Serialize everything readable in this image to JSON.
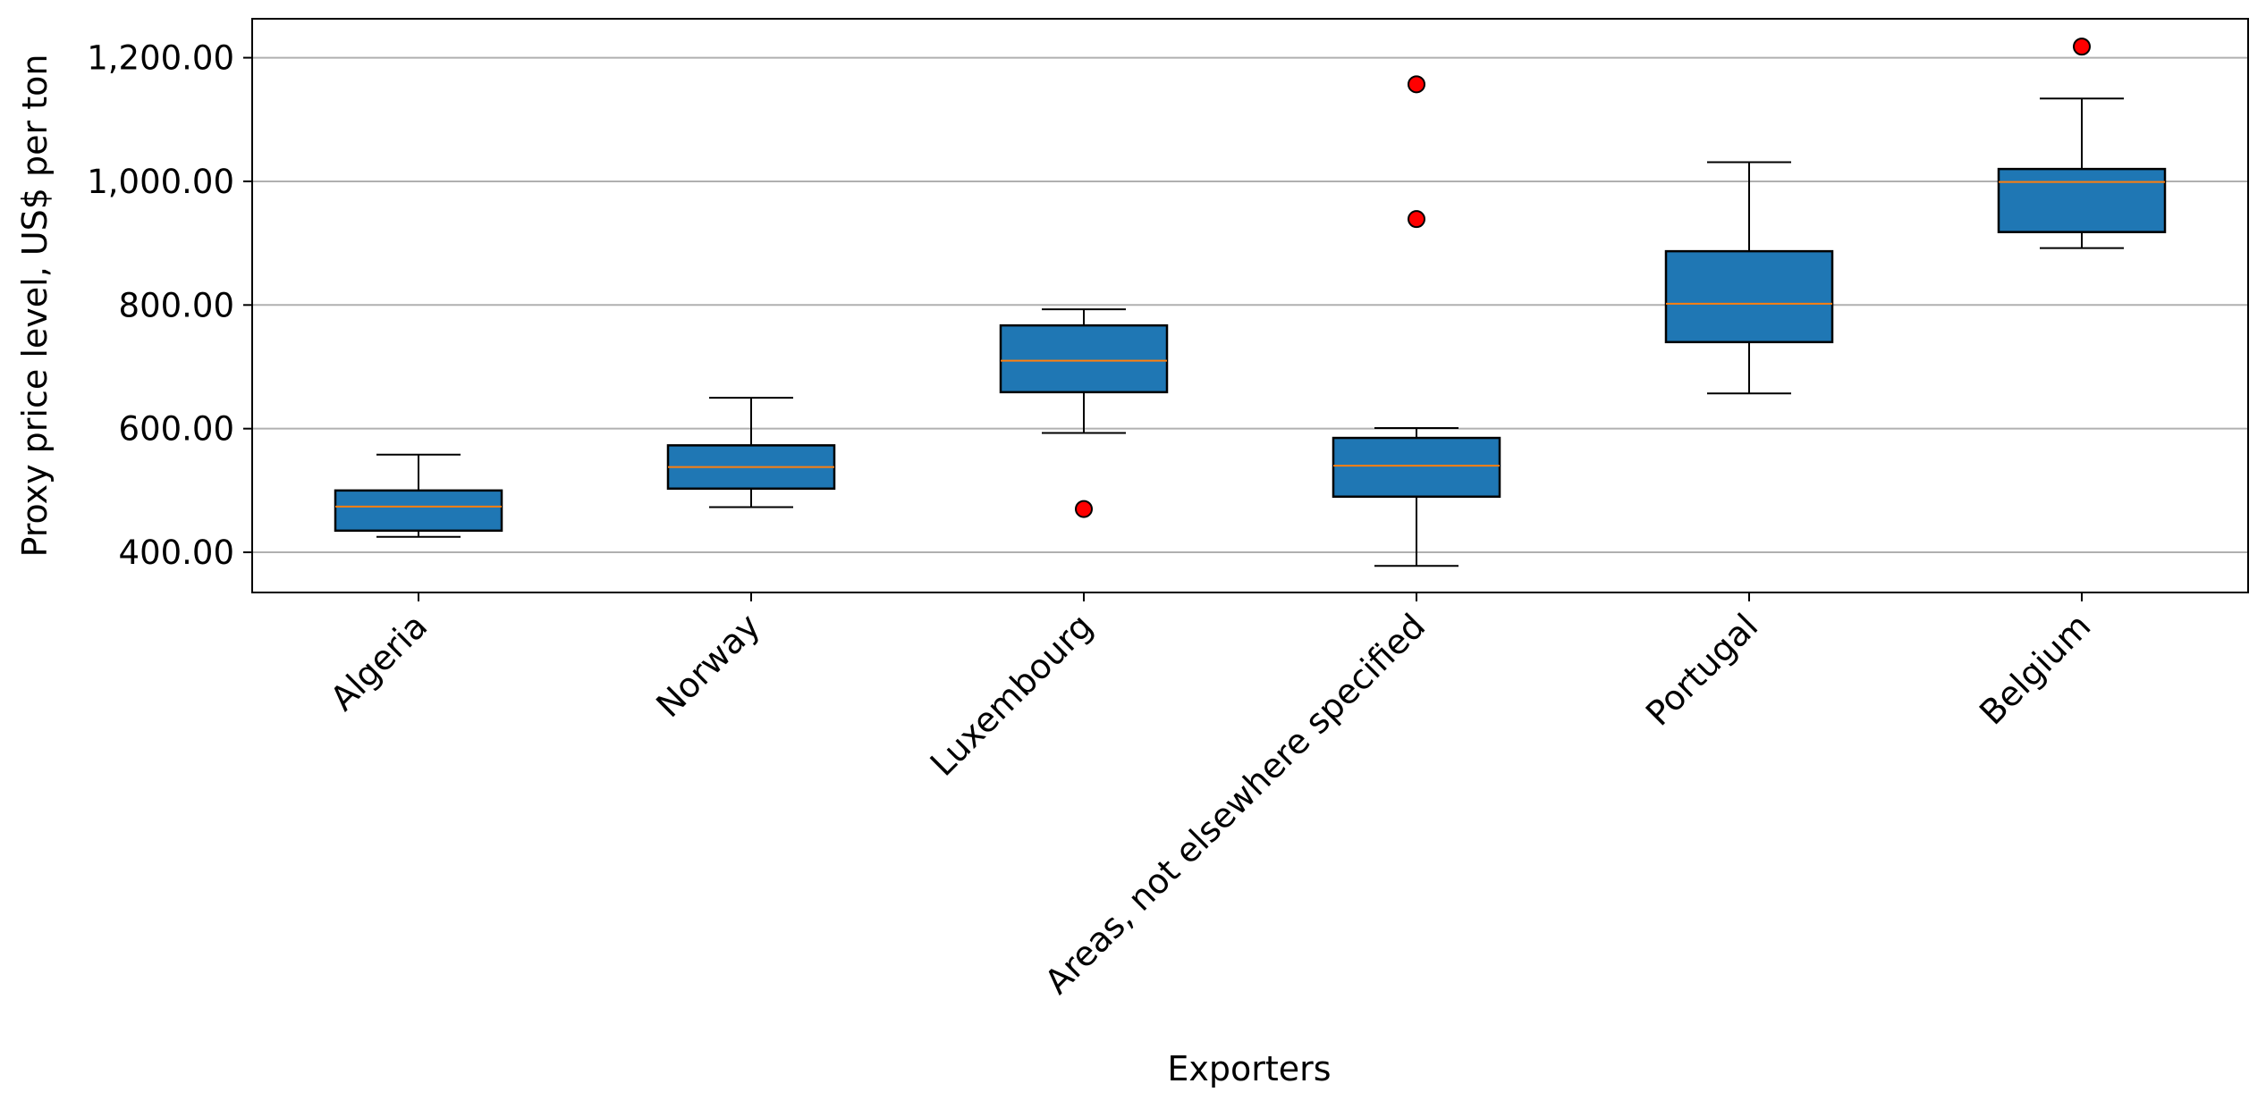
{
  "chart_data": {
    "type": "boxplot",
    "title": "",
    "xlabel": "Exporters",
    "ylabel": "Proxy price level, US$ per ton",
    "ylim": [
      335,
      1263
    ],
    "yticks": [
      400,
      600,
      800,
      1000,
      1200
    ],
    "ytick_labels": [
      "400.00",
      "600.00",
      "800.00",
      "1,000.00",
      "1,200.00"
    ],
    "grid": "y",
    "colors": {
      "box": "#1f77b4",
      "median": "#ff7f0e",
      "flier": "#ff0000",
      "edge": "#000000",
      "grid": "#b0b0b0"
    },
    "categories": [
      "Algeria",
      "Norway",
      "Luxembourg",
      "Areas, not elsewhere specified",
      "Portugal",
      "Belgium"
    ],
    "boxes": [
      {
        "label": "Algeria",
        "whislo": 425,
        "q1": 435,
        "med": 474,
        "q3": 500,
        "whishi": 558,
        "fliers": []
      },
      {
        "label": "Norway",
        "whislo": 473,
        "q1": 503,
        "med": 538,
        "q3": 573,
        "whishi": 650,
        "fliers": []
      },
      {
        "label": "Luxembourg",
        "whislo": 593,
        "q1": 659,
        "med": 710,
        "q3": 767,
        "whishi": 793,
        "fliers": [
          470
        ]
      },
      {
        "label": "Areas, not elsewhere specified",
        "whislo": 378,
        "q1": 490,
        "med": 540,
        "q3": 585,
        "whishi": 601,
        "fliers": [
          939,
          1157
        ]
      },
      {
        "label": "Portugal",
        "whislo": 657,
        "q1": 740,
        "med": 802,
        "q3": 887,
        "whishi": 1031,
        "fliers": []
      },
      {
        "label": "Belgium",
        "whislo": 892,
        "q1": 918,
        "med": 999,
        "q3": 1020,
        "whishi": 1134,
        "fliers": [
          1218
        ]
      }
    ]
  }
}
